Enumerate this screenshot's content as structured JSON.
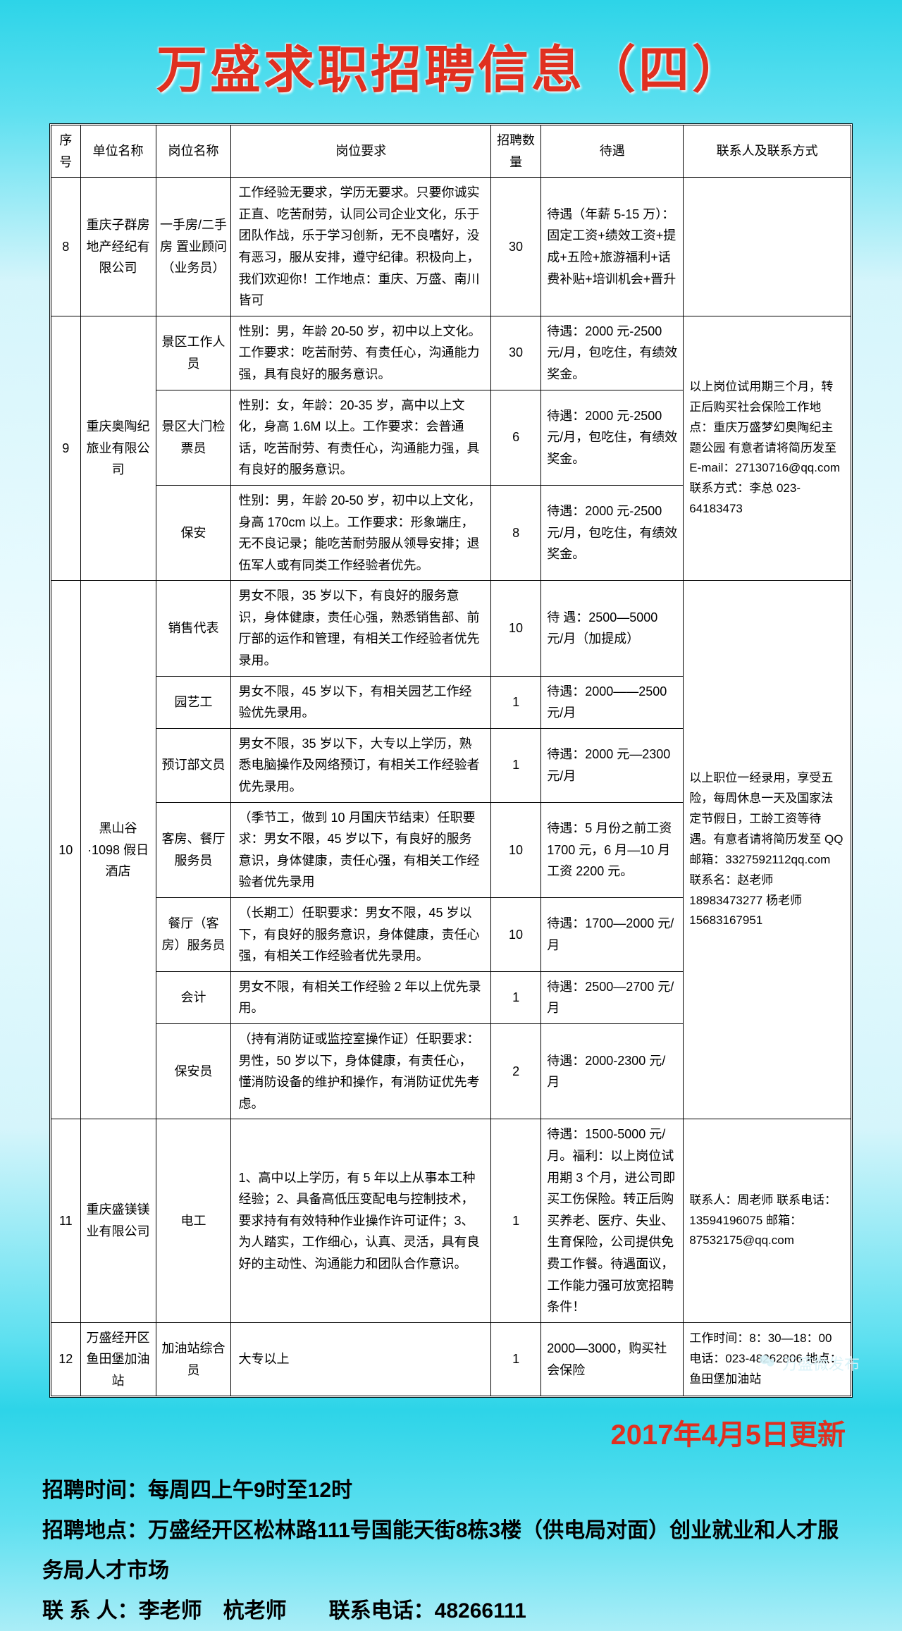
{
  "title": "万盛求职招聘信息（四）",
  "headers": [
    "序号",
    "单位名称",
    "岗位名称",
    "岗位要求",
    "招聘数量",
    "待遇",
    "联系人及联系方式"
  ],
  "rows": [
    {
      "idx": "8",
      "company": "重庆子群房地产经纪有限公司",
      "positions": [
        {
          "name": "一手房/二手房 置业顾问（业务员）",
          "req": "工作经验无要求，学历无要求。只要你诚实正直、吃苦耐劳，认同公司企业文化，乐于团队作战，乐于学习创新，无不良嗜好，没有恶习，服从安排，遵守纪律。积极向上，我们欢迎你！工作地点：重庆、万盛、南川皆可",
          "num": "30",
          "sal": "待遇（年薪 5-15 万）：固定工资+绩效工资+提成+五险+旅游福利+话费补贴+培训机会+晋升"
        }
      ],
      "contact": ""
    },
    {
      "idx": "9",
      "company": "重庆奥陶纪旅业有限公司",
      "positions": [
        {
          "name": "景区工作人员",
          "req": "性别：男，年龄 20-50 岁，初中以上文化。工作要求：吃苦耐劳、有责任心，沟通能力强，具有良好的服务意识。",
          "num": "30",
          "sal": "待遇：2000 元-2500 元/月，包吃住，有绩效奖金。"
        },
        {
          "name": "景区大门检票员",
          "req": "性别：女，年龄：20-35 岁，高中以上文化，身高 1.6M 以上。工作要求：会普通话，吃苦耐劳、有责任心，沟通能力强，具有良好的服务意识。",
          "num": "6",
          "sal": "待遇：2000 元-2500 元/月，包吃住，有绩效奖金。"
        },
        {
          "name": "保安",
          "req": "性别：男，年龄 20-50 岁，初中以上文化，身高 170cm 以上。工作要求：形象端庄，无不良记录；能吃苦耐劳服从领导安排；退伍军人或有同类工作经验者优先。",
          "num": "8",
          "sal": "待遇：2000 元-2500 元/月，包吃住，有绩效奖金。"
        }
      ],
      "contact": "以上岗位试用期三个月，转正后购买社会保险工作地点：重庆万盛梦幻奥陶纪主题公园 有意者请将简历发至 E-mail：27130716@qq.com 联系方式：李总 023-64183473"
    },
    {
      "idx": "10",
      "company": "黑山谷·1098 假日酒店",
      "positions": [
        {
          "name": "销售代表",
          "req": "男女不限，35 岁以下，有良好的服务意识，身体健康，责任心强，熟悉销售部、前厅部的运作和管理，有相关工作经验者优先录用。",
          "num": "10",
          "sal": "待 遇：2500—5000 元/月（加提成）"
        },
        {
          "name": "园艺工",
          "req": "男女不限，45 岁以下，有相关园艺工作经验优先录用。",
          "num": "1",
          "sal": "待遇：2000——2500 元/月"
        },
        {
          "name": "预订部文员",
          "req": "男女不限，35 岁以下，大专以上学历，熟悉电脑操作及网络预订，有相关工作经验者优先录用。",
          "num": "1",
          "sal": "待遇：2000 元—2300 元/月"
        },
        {
          "name": "客房、餐厅服务员",
          "req": "（季节工，做到 10 月国庆节结束）任职要求：男女不限，45 岁以下，有良好的服务意识，身体健康，责任心强，有相关工作经验者优先录用",
          "num": "10",
          "sal": "待遇：5 月份之前工资 1700 元，6 月—10 月工资 2200 元。"
        },
        {
          "name": "餐厅（客房）服务员",
          "req": "（长期工）任职要求：男女不限，45 岁以下，有良好的服务意识，身体健康，责任心强，有相关工作经验者优先录用。",
          "num": "10",
          "sal": "待遇：1700—2000 元/月"
        },
        {
          "name": "会计",
          "req": "男女不限，有相关工作经验 2 年以上优先录用。",
          "num": "1",
          "sal": "待遇：2500—2700 元/月"
        },
        {
          "name": "保安员",
          "req": "（持有消防证或监控室操作证）任职要求：男性，50 岁以下，身体健康，有责任心，懂消防设备的维护和操作，有消防证优先考虑。",
          "num": "2",
          "sal": "待遇：2000-2300 元/月"
        }
      ],
      "contact": "以上职位一经录用，享受五险，每周休息一天及国家法定节假日，工龄工资等待遇。有意者请将简历发至 QQ 邮箱：3327592112qq.com 联系名：赵老师 18983473277 杨老师 15683167951"
    },
    {
      "idx": "11",
      "company": "重庆盛镁镁业有限公司",
      "positions": [
        {
          "name": "电工",
          "req": "1、高中以上学历，有 5 年以上从事本工种经验；2、具备高低压变配电与控制技术，要求持有有效特种作业操作许可证件；3、为人踏实，工作细心，认真、灵活，具有良好的主动性、沟通能力和团队合作意识。",
          "num": "1",
          "sal": "待遇：1500-5000 元/月。福利：以上岗位试用期 3 个月，进公司即买工伤保险。转正后购买养老、医疗、失业、生育保险，公司提供免费工作餐。待遇面议，工作能力强可放宽招聘条件！"
        }
      ],
      "contact": "联系人：周老师 联系电话：13594196075 邮箱：87532175@qq.com"
    },
    {
      "idx": "12",
      "company": "万盛经开区鱼田堡加油站",
      "positions": [
        {
          "name": "加油站综合员",
          "req": "大专以上",
          "num": "1",
          "sal": "2000—3000，购买社会保险"
        }
      ],
      "contact": "工作时间：8：30—18：00 电话：023-48262806 地点：鱼田堡加油站"
    }
  ],
  "updateDate": "2017年4月5日更新",
  "footer": {
    "time": "招聘时间：每周四上午9时至12时",
    "addr": "招聘地点：万盛经开区松林路111号国能天街8栋3楼（供电局对面）创业就业和人才服务局人才市场",
    "contact": "联 系 人：李老师　杭老师　　联系电话：48266111"
  },
  "watermark": "万盛微发布",
  "colors": {
    "title": "#e03020",
    "bgTop": "#2dd4e8"
  }
}
